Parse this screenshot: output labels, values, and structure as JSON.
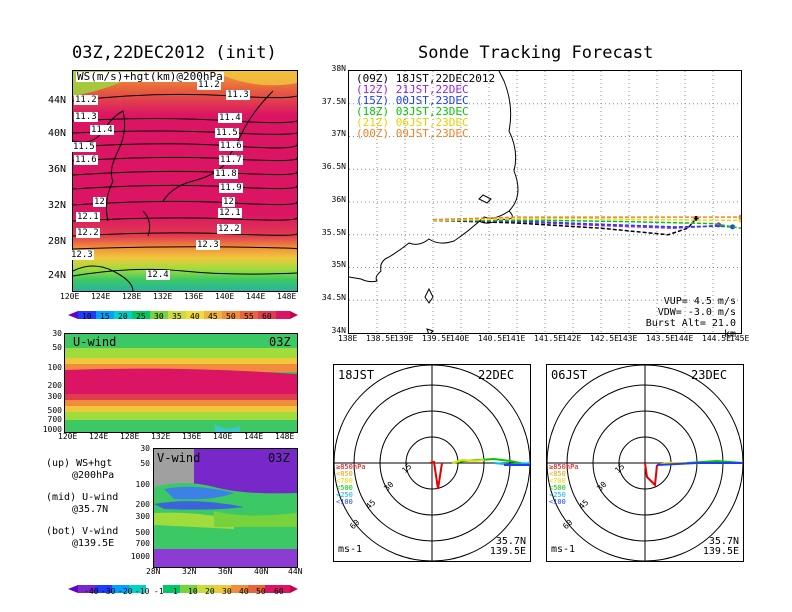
{
  "left": {
    "title": "03Z,22DEC2012 (init)",
    "map_label": "WS(m/s)+hgt(km)@200hPa",
    "lat_ticks": [
      "44N",
      "40N",
      "36N",
      "32N",
      "28N",
      "24N"
    ],
    "lon_ticks": [
      "120E",
      "124E",
      "128E",
      "132E",
      "136E",
      "140E",
      "144E",
      "148E"
    ],
    "height_labels": [
      "11.2",
      "11.2",
      "11.3",
      "11.3",
      "11.4",
      "11.4",
      "11.5",
      "11.5",
      "11.6",
      "11.6",
      "11.7",
      "11.8",
      "11.9",
      "12",
      "12",
      "12.1",
      "12.1",
      "12.2",
      "12.2",
      "12.3",
      "12.3",
      "12.4"
    ],
    "ws_colorbar": [
      "10",
      "15",
      "20",
      "25",
      "30",
      "35",
      "40",
      "45",
      "50",
      "55",
      "60"
    ],
    "u_title": "U-wind",
    "u_time": "03Z",
    "p_ticks": [
      "30",
      "50",
      "100",
      "200",
      "300",
      "500",
      "700",
      "1000"
    ],
    "v_title": "V-wind",
    "v_time": "03Z",
    "v_lat_ticks": [
      "28N",
      "32N",
      "36N",
      "40N",
      "44N"
    ],
    "legend": [
      {
        "a": "(up) WS+hgt",
        "b": "@200hPa"
      },
      {
        "a": "(mid) U-wind",
        "b": "@35.7N"
      },
      {
        "a": "(bot) V-wind",
        "b": "@139.5E"
      }
    ],
    "wind_colorbar": [
      "-40",
      "-30",
      "-20",
      "-10",
      "-1",
      "1",
      "10",
      "20",
      "30",
      "40",
      "50",
      "60"
    ]
  },
  "right": {
    "title": "Sonde Tracking Forecast",
    "lat_ticks": [
      "38N",
      "37.5N",
      "37N",
      "36.5N",
      "36N",
      "35.5N",
      "35N",
      "34.5N",
      "34N"
    ],
    "lon_ticks": [
      "138E",
      "138.5E",
      "139E",
      "139.5E",
      "140E",
      "140.5E",
      "141E",
      "141.5E",
      "142E",
      "142.5E",
      "143E",
      "143.5E",
      "144E",
      "144.5E",
      "145E"
    ],
    "launches": [
      {
        "z": "(09Z)",
        "jst": "18JST,22DEC2012",
        "color": "#000000"
      },
      {
        "z": "(12Z)",
        "jst": "21JST,22DEC",
        "color": "#a020f0"
      },
      {
        "z": "(15Z)",
        "jst": "00JST,23DEC",
        "color": "#1e3cff"
      },
      {
        "z": "(18Z)",
        "jst": "03JST,23DEC",
        "color": "#00c800"
      },
      {
        "z": "(21Z)",
        "jst": "06JST,23DEC",
        "color": "#f0dc00"
      },
      {
        "z": "(00Z)",
        "jst": "09JST,23DEC",
        "color": "#f08228"
      }
    ],
    "params": [
      "VUP= 4.5 m/s",
      "VDW= -3.0 m/s",
      "Burst Alt= 21.0 km"
    ],
    "polar_left": {
      "time": "18JST",
      "date": "22DEC",
      "lat": "35.7N",
      "lon": "139.5E",
      "unit": "ms-1"
    },
    "polar_right": {
      "time": "06JST",
      "date": "23DEC",
      "lat": "35.7N",
      "lon": "139.5E",
      "unit": "ms-1"
    },
    "ring_labels": [
      "15",
      "30",
      "45",
      "60"
    ],
    "level_legend": [
      "≥850hPa",
      "<850",
      "<700",
      "<500",
      "<250",
      "<100"
    ],
    "level_colors": [
      "#e60000",
      "#f0a000",
      "#e6dc00",
      "#00c800",
      "#00b4ff",
      "#1e3cff"
    ]
  },
  "chart_data": [
    {
      "type": "line",
      "title": "Sonde Tracking Forecast",
      "xlim": [
        138,
        145
      ],
      "ylim": [
        34,
        38
      ],
      "series": [
        {
          "name": "(09Z) 18JST,22DEC2012",
          "x": [
            139.5,
            141.0,
            142.5,
            143.7,
            144.05,
            144.2
          ],
          "y": [
            35.72,
            35.68,
            35.6,
            35.5,
            35.6,
            35.75
          ]
        },
        {
          "name": "(12Z) 21JST,22DEC",
          "x": [
            139.5,
            141.0,
            142.5,
            143.8,
            144.4,
            144.6
          ],
          "y": [
            35.72,
            35.7,
            35.64,
            35.6,
            35.63,
            35.65
          ]
        },
        {
          "name": "(15Z) 00JST,23DEC",
          "x": [
            139.5,
            141.0,
            142.5,
            143.8,
            144.6,
            144.85
          ],
          "y": [
            35.72,
            35.71,
            35.66,
            35.62,
            35.63,
            35.62
          ]
        },
        {
          "name": "(18Z) 03JST,23DEC",
          "x": [
            139.5,
            141.5,
            143.0,
            144.5,
            145.0,
            145.1
          ],
          "y": [
            35.72,
            35.72,
            35.7,
            35.67,
            35.6,
            35.55
          ]
        },
        {
          "name": "(21Z) 06JST,23DEC",
          "x": [
            139.5,
            141.5,
            142.1,
            143.5,
            145.0
          ],
          "y": [
            35.72,
            35.75,
            35.75,
            35.73,
            35.72
          ]
        },
        {
          "name": "(00Z) 09JST,23DEC",
          "x": [
            139.5,
            141.0,
            142.1,
            143.5,
            145.0
          ],
          "y": [
            35.73,
            35.77,
            35.77,
            35.77,
            35.77
          ]
        }
      ]
    },
    {
      "type": "heatmap",
      "title": "03Z,22DEC2012 (init)",
      "xlim": [
        120,
        149
      ],
      "ylim": [
        22,
        47
      ],
      "note_series": "WS(m/s)+hgt(km)@200hPa",
      "jet_core_lat": [
        30,
        42
      ],
      "jet_core_ws_min": 60
    }
  ]
}
